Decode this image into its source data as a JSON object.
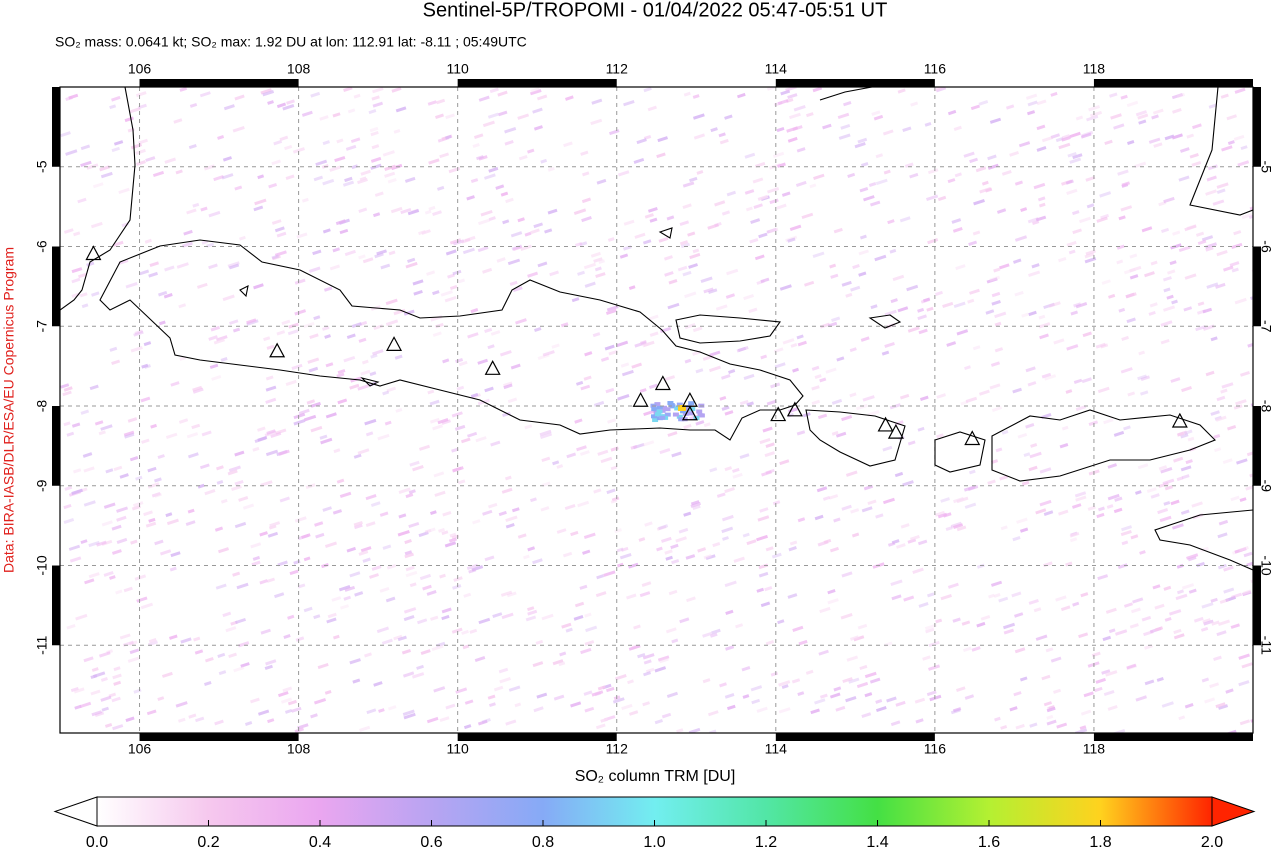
{
  "title": "Sentinel-5P/TROPOMI - 01/04/2022 05:47-05:51 UT",
  "subtitle": "SO₂ mass: 0.0641 kt; SO₂ max: 1.92 DU at lon: 112.91 lat: -8.11 ; 05:49UTC",
  "credit": "Data: BIRA-IASB/DLR/ESA/EU Copernicus Program",
  "chart_data": {
    "type": "map",
    "xlim": [
      105,
      120
    ],
    "ylim": [
      -12.1,
      -4
    ],
    "xticks": [
      106,
      108,
      110,
      112,
      114,
      116,
      118
    ],
    "yticks": [
      -5,
      -6,
      -7,
      -8,
      -9,
      -10,
      -11
    ],
    "grid": true,
    "markers": {
      "x": [
        105.42,
        107.73,
        109.2,
        110.44,
        112.3,
        112.58,
        112.92,
        112.92,
        114.03,
        114.24,
        115.38,
        115.51,
        116.47,
        119.08
      ],
      "y": [
        -6.1,
        -7.32,
        -7.24,
        -7.54,
        -7.94,
        -7.73,
        -7.94,
        -8.11,
        -8.12,
        -8.06,
        -8.25,
        -8.34,
        -8.42,
        -8.2
      ]
    },
    "colorbar": {
      "label": "SO₂ column TRM [DU]",
      "lim": [
        0,
        2
      ],
      "ticks": [
        {
          "value": 0,
          "label": "0.0"
        },
        {
          "value": 0.2,
          "label": "0.2"
        },
        {
          "value": 0.4,
          "label": "0.4"
        },
        {
          "value": 0.6,
          "label": "0.6"
        },
        {
          "value": 0.8,
          "label": "0.8"
        },
        {
          "value": 1,
          "label": "1.0"
        },
        {
          "value": 1.2,
          "label": "1.2"
        },
        {
          "value": 1.4,
          "label": "1.4"
        },
        {
          "value": 1.6,
          "label": "1.6"
        },
        {
          "value": 1.8,
          "label": "1.8"
        },
        {
          "value": 2,
          "label": "2.0"
        }
      ],
      "colors": [
        "#ffffff",
        "#f6c8ee",
        "#eaa6f0",
        "#b8a4f2",
        "#86aaf6",
        "#72eef0",
        "#52e6a6",
        "#44e044",
        "#b4f032",
        "#ffd21e",
        "#ff2400"
      ]
    }
  }
}
